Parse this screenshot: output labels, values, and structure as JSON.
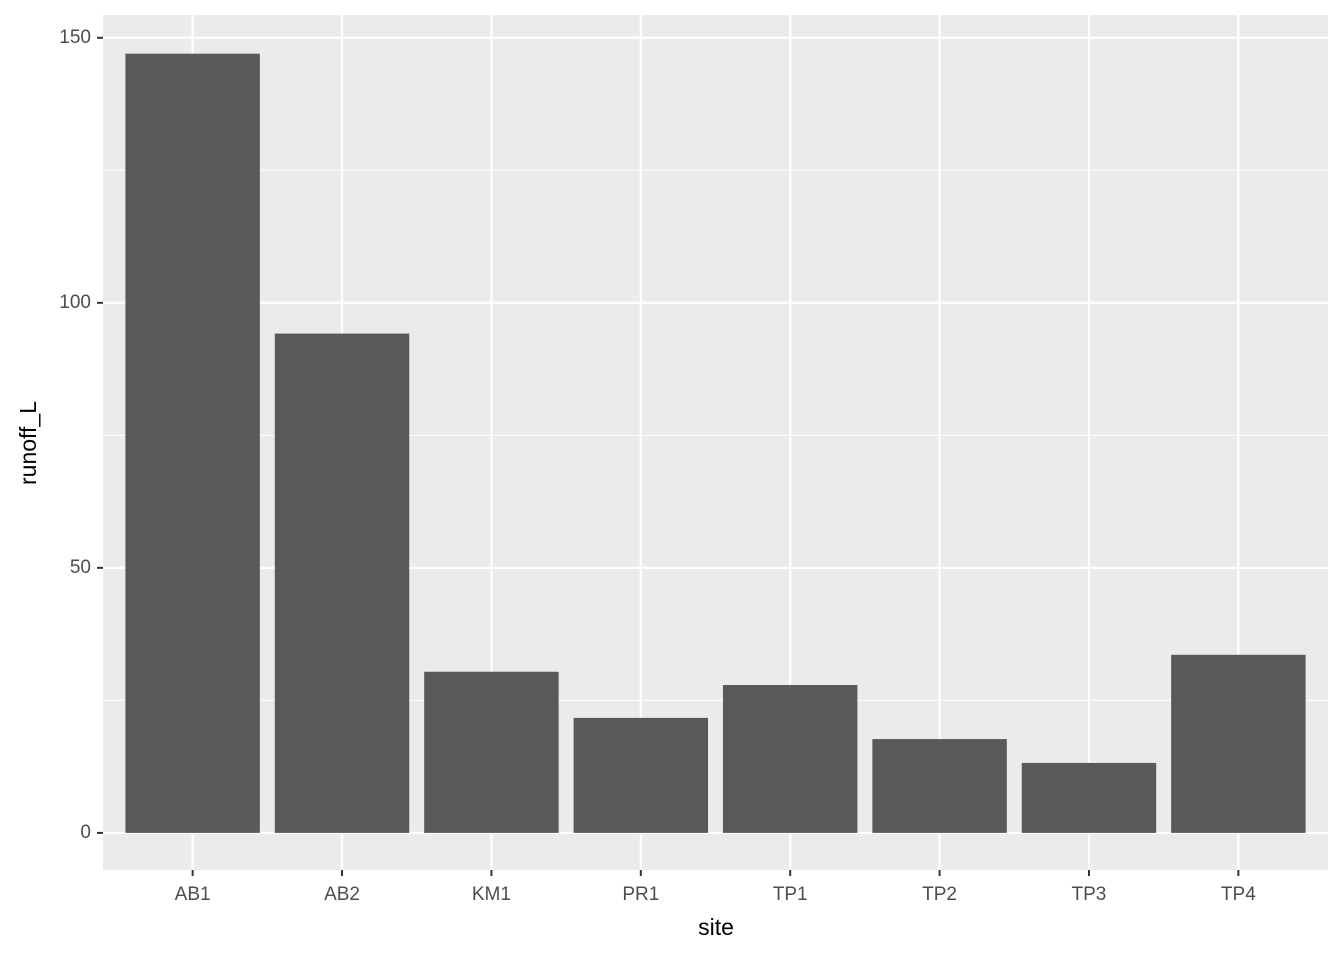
{
  "chart_data": {
    "type": "bar",
    "x_label": "site",
    "y_label": "runoff_L",
    "categories": [
      "AB1",
      "AB2",
      "KM1",
      "PR1",
      "TP1",
      "TP2",
      "TP3",
      "TP4"
    ],
    "values": [
      147.0,
      94.2,
      30.4,
      21.7,
      27.9,
      17.7,
      13.2,
      33.6
    ],
    "color": "#595959",
    "ylim": [
      -7,
      154.3
    ],
    "yticks": [
      0,
      50,
      100,
      150
    ],
    "grid": true,
    "minor_grid": true
  }
}
